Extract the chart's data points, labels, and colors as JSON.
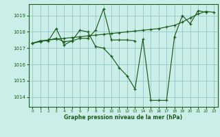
{
  "background_color": "#cceee8",
  "grid_color": "#99cccc",
  "line_color": "#1a5c1a",
  "xlabel": "Graphe pression niveau de la mer (hPa)",
  "xlim": [
    -0.5,
    23.5
  ],
  "ylim": [
    1013.4,
    1019.7
  ],
  "yticks": [
    1014,
    1015,
    1016,
    1017,
    1018,
    1019
  ],
  "xticks": [
    0,
    1,
    2,
    3,
    4,
    5,
    6,
    7,
    8,
    9,
    10,
    11,
    12,
    13,
    14,
    15,
    16,
    17,
    18,
    19,
    20,
    21,
    22,
    23
  ],
  "series": [
    {
      "x": [
        0,
        1,
        2,
        3,
        4,
        5,
        6,
        7,
        8,
        9,
        10,
        11,
        12,
        13,
        14,
        15,
        16,
        17,
        18,
        19,
        20,
        21,
        22
      ],
      "y": [
        1017.3,
        1017.45,
        1017.45,
        1018.2,
        1017.2,
        1017.45,
        1018.1,
        1018.0,
        1017.1,
        1017.0,
        1016.5,
        1015.8,
        1015.3,
        1014.5,
        1017.55,
        1013.8,
        1013.8,
        1013.8,
        1017.7,
        1019.0,
        1018.5,
        1019.3,
        1019.2
      ]
    },
    {
      "x": [
        0,
        1,
        2,
        3,
        4,
        5,
        6,
        7,
        8,
        9,
        10,
        11,
        12,
        13,
        14,
        15,
        16,
        17,
        18,
        19,
        20,
        21,
        22,
        23
      ],
      "y": [
        1017.3,
        1017.4,
        1017.5,
        1017.55,
        1017.6,
        1017.65,
        1017.7,
        1017.75,
        1017.8,
        1017.85,
        1017.9,
        1017.95,
        1018.0,
        1018.05,
        1018.1,
        1018.15,
        1018.2,
        1018.3,
        1018.4,
        1018.6,
        1018.85,
        1019.1,
        1019.25,
        1019.2
      ]
    },
    {
      "x": [
        0,
        1,
        2,
        3,
        4,
        5,
        6,
        7,
        8,
        9,
        10,
        11,
        12,
        13
      ],
      "y": [
        1017.3,
        1017.45,
        1017.5,
        1017.6,
        1017.4,
        1017.45,
        1017.6,
        1017.6,
        1018.1,
        1019.4,
        1017.5,
        1017.5,
        1017.5,
        1017.45
      ]
    }
  ]
}
